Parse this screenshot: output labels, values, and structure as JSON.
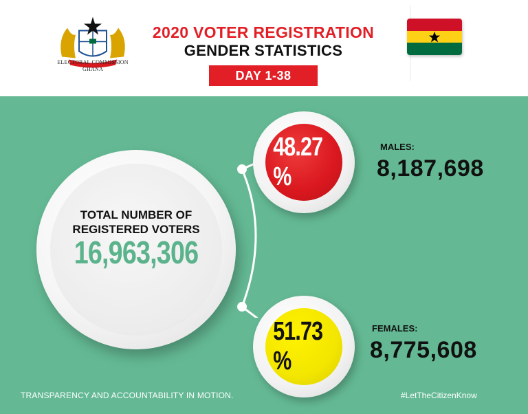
{
  "header": {
    "org_line1": "ELECTORAL COMMISSION",
    "org_line2": "GHANA",
    "title_line1": "2020 VOTER REGISTRATION",
    "title_line2": "GENDER STATISTICS",
    "period": "DAY 1-38"
  },
  "emblem": {
    "name": "ghana-coat-of-arms"
  },
  "flag": {
    "name": "ghana-flag",
    "colors": [
      "#ce1126",
      "#fcd116",
      "#006b3f"
    ],
    "star_color": "#000000"
  },
  "total": {
    "label_line1": "TOTAL NUMBER OF",
    "label_line2": "REGISTERED VOTERS",
    "value": "16,963,306"
  },
  "males": {
    "percent": "48.27 %",
    "label": "MALES:",
    "count": "8,187,698",
    "color": "#d9171e"
  },
  "females": {
    "percent": "51.73 %",
    "label": "FEMALES:",
    "count": "8,775,608",
    "color": "#f3e600"
  },
  "footer": {
    "tagline": "TRANSPARENCY AND ACCOUNTABILITY IN MOTION.",
    "hashtag": "#LetTheCitizenKnow"
  },
  "colors": {
    "background": "#64b994",
    "accent": "#e21f26",
    "total_value": "#5bb38c"
  }
}
